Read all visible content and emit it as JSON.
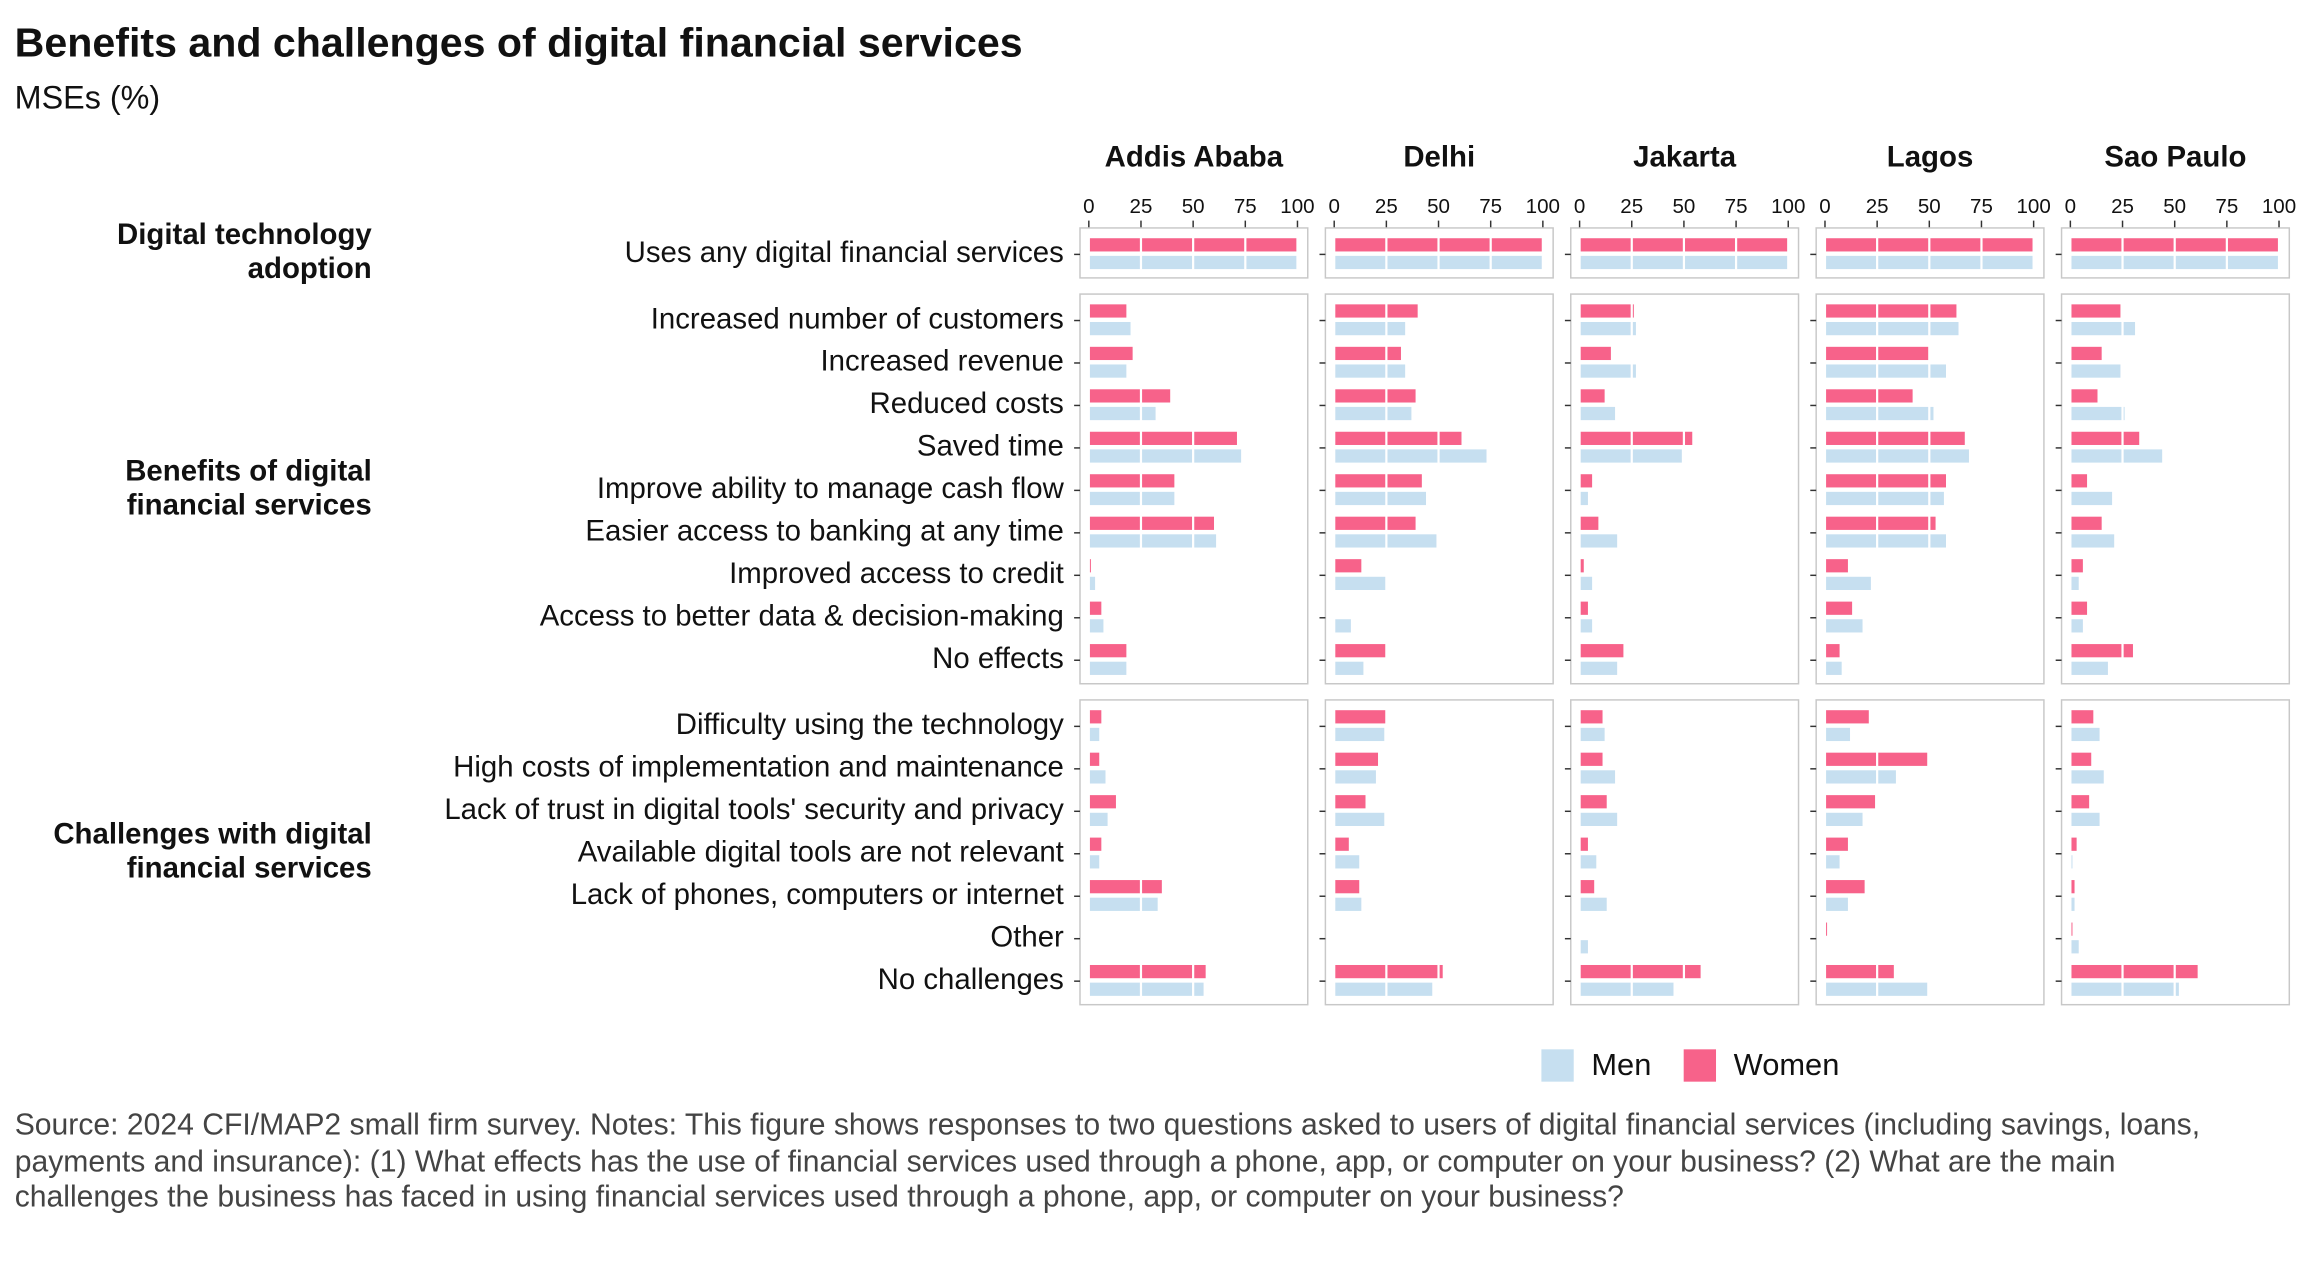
{
  "chart_data": {
    "type": "bar",
    "title": "Benefits and challenges of digital financial services",
    "subtitle": "MSEs (%)",
    "note": "Source: 2024 CFI/MAP2 small firm survey. Notes: This figure shows responses to two questions asked to users of digital financial services (including savings, loans, payments and insurance): (1) What effects has the use of financial services used through a phone, app, or computer on your business? (2) What are the main challenges the business has faced in using financial services used through a phone, app, or computer on your business?",
    "facets": [
      "Addis Ababa",
      "Delhi",
      "Jakarta",
      "Lagos",
      "Sao Paulo"
    ],
    "groups": [
      {
        "label": "Digital technology adoption",
        "categories": [
          "Uses any digital financial services"
        ]
      },
      {
        "label": "Benefits of digital financial services",
        "categories": [
          "Increased number of customers",
          "Increased revenue",
          "Reduced costs",
          "Saved time",
          "Improve ability to manage cash flow",
          "Easier access to banking at any time",
          "Improved access to credit",
          "Access to better data & decision-making",
          "No effects"
        ]
      },
      {
        "label": "Challenges with digital financial services",
        "categories": [
          "Difficulty using the technology",
          "High costs of implementation and maintenance",
          "Lack of trust in digital tools' security and privacy",
          "Available digital tools are not relevant",
          "Lack of phones, computers or internet",
          "Other",
          "No challenges"
        ]
      }
    ],
    "series": [
      {
        "name": "Men",
        "color": "#c6dff0",
        "values": [
          [
            [
              100
            ],
            [
              20,
              18,
              32,
              73,
              41,
              61,
              3,
              7,
              18
            ],
            [
              5,
              8,
              9,
              5,
              33,
              0,
              55
            ]
          ],
          [
            [
              100
            ],
            [
              34,
              34,
              37,
              73,
              44,
              49,
              25,
              8,
              14
            ],
            [
              24,
              20,
              24,
              12,
              13,
              0,
              47
            ]
          ],
          [
            [
              100
            ],
            [
              27,
              27,
              17,
              49,
              4,
              18,
              6,
              6,
              18
            ],
            [
              12,
              17,
              18,
              8,
              13,
              4,
              45
            ]
          ],
          [
            [
              100
            ],
            [
              64,
              58,
              52,
              69,
              57,
              58,
              22,
              18,
              8
            ],
            [
              12,
              34,
              18,
              7,
              11,
              0,
              49
            ]
          ],
          [
            [
              100
            ],
            [
              31,
              24,
              26,
              44,
              20,
              21,
              4,
              6,
              18
            ],
            [
              14,
              16,
              14,
              1,
              2,
              4,
              52
            ]
          ]
        ]
      },
      {
        "name": "Women",
        "color": "#f7628a",
        "values": [
          [
            [
              100
            ],
            [
              18,
              21,
              39,
              71,
              41,
              60,
              1,
              6,
              18
            ],
            [
              6,
              5,
              13,
              6,
              35,
              0,
              56
            ]
          ],
          [
            [
              100
            ],
            [
              40,
              32,
              39,
              61,
              42,
              39,
              13,
              0,
              25
            ],
            [
              25,
              21,
              15,
              7,
              12,
              0,
              52
            ]
          ],
          [
            [
              100
            ],
            [
              26,
              15,
              12,
              54,
              6,
              9,
              2,
              4,
              21
            ],
            [
              11,
              11,
              13,
              4,
              7,
              0,
              58
            ]
          ],
          [
            [
              100
            ],
            [
              63,
              50,
              42,
              67,
              58,
              53,
              11,
              13,
              7
            ],
            [
              21,
              49,
              24,
              11,
              19,
              1,
              33
            ]
          ],
          [
            [
              100
            ],
            [
              24,
              15,
              13,
              33,
              8,
              15,
              6,
              8,
              30
            ],
            [
              11,
              10,
              9,
              3,
              2,
              1,
              61
            ]
          ]
        ]
      }
    ],
    "xlim": [
      0,
      100
    ],
    "xticks": [
      0,
      25,
      50,
      75,
      100
    ],
    "grid": true
  }
}
